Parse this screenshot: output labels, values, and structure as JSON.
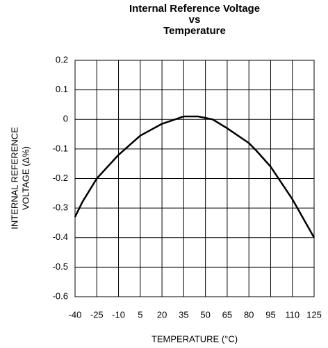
{
  "chart_data": {
    "type": "line",
    "title": [
      "Internal Reference Voltage",
      "vs",
      "Temperature"
    ],
    "ylabel": [
      "INTERNAL REFERENCE",
      "VOLTAGE (Δ%)"
    ],
    "xlabel": "TEMPERATURE (°C)",
    "x": [
      -40,
      -35,
      -25,
      -10,
      5,
      20,
      35,
      45,
      55,
      65,
      80,
      85,
      95,
      110,
      125
    ],
    "series": [
      {
        "color": "#000000",
        "values": [
          -0.33,
          -0.28,
          -0.2,
          -0.12,
          -0.055,
          -0.015,
          0.01,
          0.01,
          0,
          -0.03,
          -0.08,
          -0.105,
          -0.16,
          -0.27,
          -0.4
        ]
      }
    ],
    "xlim": [
      -40,
      125
    ],
    "xticks": [
      -40,
      -25,
      -10,
      5,
      20,
      35,
      50,
      65,
      80,
      95,
      110,
      125
    ],
    "ylim": [
      -0.6,
      0.2
    ],
    "yticks": [
      0.2,
      0.1,
      0,
      -0.1,
      -0.2,
      -0.3,
      -0.4,
      -0.5,
      -0.6
    ],
    "grid": true
  }
}
